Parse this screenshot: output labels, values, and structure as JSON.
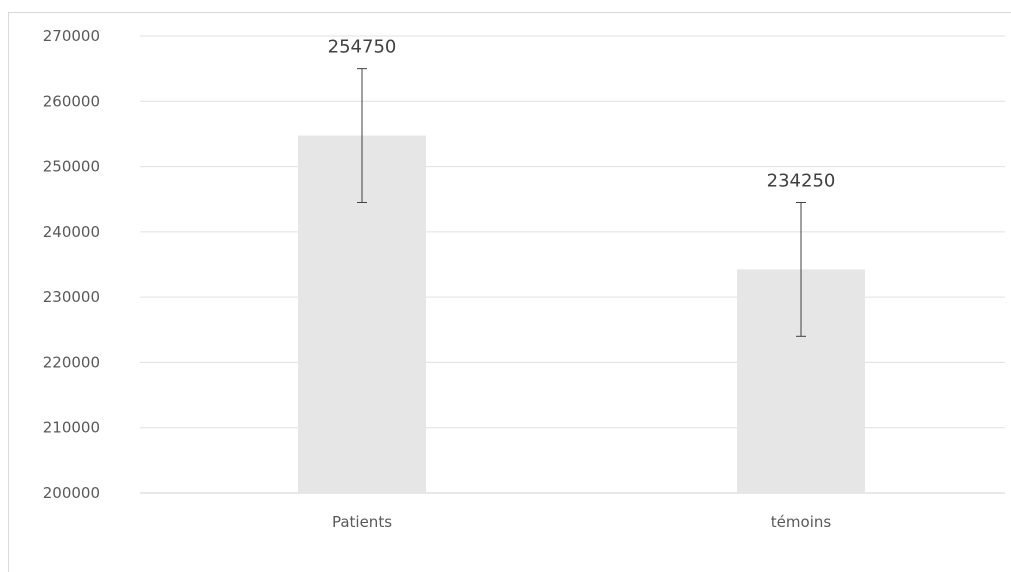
{
  "chart_data": {
    "type": "bar",
    "title": "",
    "xlabel": "",
    "ylabel": "",
    "categories": [
      "Patients",
      "témoins"
    ],
    "values": [
      254750,
      234250
    ],
    "data_labels": [
      "254750",
      "234250"
    ],
    "error_bars": [
      {
        "low": 244500,
        "high": 265000
      },
      {
        "low": 224000,
        "high": 244500
      }
    ],
    "ylim": [
      200000,
      270000
    ],
    "yticks": [
      200000,
      210000,
      220000,
      230000,
      240000,
      250000,
      260000,
      270000
    ],
    "ytick_labels": [
      "200000",
      "210000",
      "220000",
      "230000",
      "240000",
      "250000",
      "260000",
      "270000"
    ],
    "grid": true,
    "legend": "none",
    "colors": {
      "bar": "#e7e6e6",
      "grid": "#e0e0e0",
      "axis": "#d0d0d0",
      "error_bar": "#404040",
      "text": "#595959"
    }
  }
}
